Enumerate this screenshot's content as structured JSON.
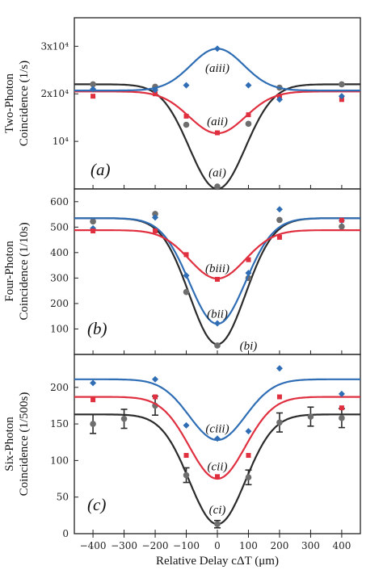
{
  "chart_data": {
    "type": "line",
    "xlabel": "Relative Delay cΔT (μm)",
    "x_ticks": [
      "−400",
      "−300",
      "−200",
      "−100",
      "0",
      "100",
      "200",
      "300",
      "400"
    ],
    "xlim": [
      -460,
      460
    ],
    "colors": {
      "black": "#2b2b2b",
      "red": "#e03040",
      "blue": "#2f6db5"
    },
    "panels": [
      {
        "id": "a",
        "panel_label": "(a)",
        "ylabel_line1": "Two-Photon",
        "ylabel_line2": "Coincidence (1/s)",
        "ylim": [
          0,
          36000
        ],
        "ytick_values": [
          10000,
          20000,
          30000
        ],
        "ytick_labels": [
          "10⁴",
          "2x10⁴",
          "3x10⁴"
        ],
        "series": [
          {
            "label": "(ai)",
            "color": "black",
            "baseline": 22000,
            "dip": 22000,
            "width": 90,
            "points": [
              [
                -400,
                22000
              ],
              [
                -200,
                21500
              ],
              [
                -100,
                13500
              ],
              [
                0,
                500
              ],
              [
                100,
                13700
              ],
              [
                200,
                21300
              ],
              [
                400,
                22000
              ]
            ],
            "label_pos": [
              0,
              3500
            ]
          },
          {
            "label": "(aii)",
            "color": "red",
            "baseline": 20500,
            "dip": 8800,
            "width": 90,
            "points": [
              [
                -400,
                19500
              ],
              [
                -200,
                20000
              ],
              [
                -100,
                15300
              ],
              [
                0,
                11800
              ],
              [
                100,
                15600
              ],
              [
                200,
                19500
              ],
              [
                400,
                18800
              ]
            ],
            "label_pos": [
              0,
              14300
            ]
          },
          {
            "label": "(aiii)",
            "color": "blue",
            "baseline": 20700,
            "dip": -8800,
            "width": 85,
            "points": [
              [
                -400,
                21000
              ],
              [
                -200,
                20800
              ],
              [
                -100,
                21800
              ],
              [
                0,
                29500
              ],
              [
                100,
                21800
              ],
              [
                200,
                18800
              ],
              [
                400,
                19500
              ]
            ],
            "label_pos": [
              0,
              25500
            ]
          }
        ]
      },
      {
        "id": "b",
        "panel_label": "(b)",
        "ylabel_line1": "Four-Photon",
        "ylabel_line2": "Coincidence (1/10s)",
        "ylim": [
          0,
          650
        ],
        "ytick_values": [
          100,
          200,
          300,
          400,
          500,
          600
        ],
        "ytick_labels": [
          "100",
          "200",
          "300",
          "400",
          "500",
          "600"
        ],
        "series": [
          {
            "label": "(bi)",
            "color": "black",
            "baseline": 535,
            "dip": 495,
            "width": 90,
            "points": [
              [
                -400,
                522
              ],
              [
                -200,
                552
              ],
              [
                -100,
                245
              ],
              [
                0,
                35
              ],
              [
                100,
                300
              ],
              [
                200,
                528
              ],
              [
                400,
                502
              ]
            ],
            "label_pos": [
              100,
              35
            ]
          },
          {
            "label": "(bii)",
            "color": "blue",
            "baseline": 535,
            "dip": 415,
            "width": 90,
            "points": [
              [
                -400,
                495
              ],
              [
                -200,
                538
              ],
              [
                -100,
                310
              ],
              [
                0,
                122
              ],
              [
                100,
                320
              ],
              [
                200,
                570
              ],
              [
                400,
                525
              ]
            ],
            "label_pos": [
              0,
              160
            ]
          },
          {
            "label": "(biii)",
            "color": "red",
            "baseline": 488,
            "dip": 190,
            "width": 90,
            "points": [
              [
                -400,
                485
              ],
              [
                -200,
                485
              ],
              [
                -100,
                392
              ],
              [
                0,
                295
              ],
              [
                100,
                372
              ],
              [
                200,
                460
              ],
              [
                400,
                527
              ]
            ],
            "label_pos": [
              0,
              340
            ]
          }
        ]
      },
      {
        "id": "c",
        "panel_label": "(c)",
        "ylabel_line1": "Six-Photon",
        "ylabel_line2": "Coincidence (1/500s)",
        "ylim": [
          0,
          245
        ],
        "ytick_values": [
          0,
          50,
          100,
          150,
          200
        ],
        "ytick_labels": [
          "0",
          "50",
          "100",
          "150",
          "200"
        ],
        "series": [
          {
            "label": "(ci)",
            "color": "black",
            "baseline": 163,
            "dip": 150,
            "width": 90,
            "points": [
              [
                -400,
                150
              ],
              [
                -300,
                157
              ],
              [
                -200,
                175
              ],
              [
                -100,
                80
              ],
              [
                0,
                13
              ],
              [
                100,
                77
              ],
              [
                200,
                152
              ],
              [
                300,
                160
              ],
              [
                400,
                158
              ]
            ],
            "errors": [
              13,
              13,
              13,
              10,
              5,
              10,
              13,
              13,
              13
            ],
            "label_pos": [
              0,
              33
            ]
          },
          {
            "label": "(cii)",
            "color": "red",
            "baseline": 187,
            "dip": 112,
            "width": 90,
            "points": [
              [
                -400,
                183
              ],
              [
                -200,
                187
              ],
              [
                -100,
                107
              ],
              [
                0,
                78
              ],
              [
                100,
                107
              ],
              [
                200,
                187
              ],
              [
                400,
                172
              ]
            ],
            "label_pos": [
              0,
              92
            ]
          },
          {
            "label": "(ciii)",
            "color": "blue",
            "baseline": 211,
            "dip": 83,
            "width": 90,
            "points": [
              [
                -400,
                206
              ],
              [
                -200,
                211
              ],
              [
                -100,
                148
              ],
              [
                0,
                130
              ],
              [
                100,
                140
              ],
              [
                200,
                226
              ],
              [
                400,
                191
              ]
            ],
            "label_pos": [
              0,
              144
            ]
          }
        ]
      }
    ]
  }
}
